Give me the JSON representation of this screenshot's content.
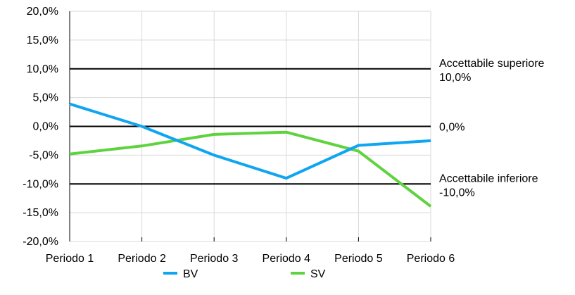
{
  "colors": {
    "background": "#ffffff",
    "grid": "#d9d9d9",
    "reference": "#000000",
    "text": "#000000"
  },
  "chart_data": {
    "type": "line",
    "categories": [
      "Periodo 1",
      "Periodo 2",
      "Periodo 3",
      "Periodo 4",
      "Periodo 5",
      "Periodo 6"
    ],
    "ylim": [
      -20,
      20
    ],
    "yticks": [
      20,
      15,
      10,
      5,
      0,
      -5,
      -10,
      -15,
      -20
    ],
    "ytick_labels": [
      "20,0%",
      "15,0%",
      "10,0%",
      "5,0%",
      "0,0%",
      "-5,0%",
      "-10,0%",
      "-15,0%",
      "-20,0%"
    ],
    "grid": true,
    "legend": {
      "placement": "bottom"
    },
    "series": [
      {
        "name": "BV",
        "color": "#0fa5f0",
        "values": [
          3.9,
          0.0,
          -5.0,
          -9.0,
          -3.3,
          -2.5
        ]
      },
      {
        "name": "SV",
        "color": "#5fd33f",
        "values": [
          -4.8,
          -3.4,
          -1.4,
          -1.0,
          -4.3,
          -13.9
        ]
      }
    ],
    "reference_lines": [
      {
        "value": 10,
        "label_line1": "Accettabile superiore",
        "label_line2": "10,0%"
      },
      {
        "value": 0,
        "label_line1": "0,0%",
        "label_line2": ""
      },
      {
        "value": -10,
        "label_line1": "Accettabile inferiore",
        "label_line2": "-10,0%"
      }
    ]
  }
}
